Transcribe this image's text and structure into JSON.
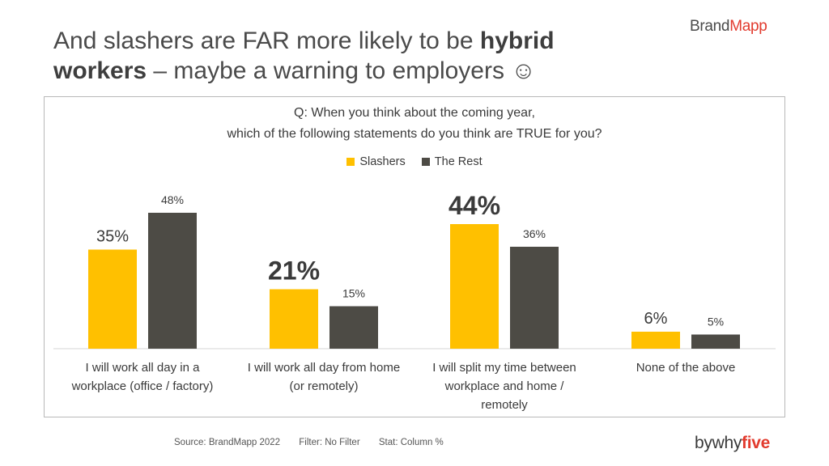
{
  "header": {
    "title_part1": "And slashers are FAR more likely to be ",
    "title_bold1": "hybrid",
    "title_bold2": "workers",
    "title_part2": " – maybe a warning to employers ☺",
    "brand_part1": "Brand",
    "brand_part2": "Mapp"
  },
  "colors": {
    "slashers": "#FFC000",
    "rest": "#4D4B45",
    "brand_red": "#E23B2E"
  },
  "chart_data": {
    "type": "bar",
    "title_line1": "Q: When you think about the coming year,",
    "title_line2": "which of the following statements do you think are TRUE for you?",
    "categories": [
      [
        "I will work all day in a",
        "workplace (office / factory)"
      ],
      [
        "I will work all day from home",
        "(or remotely)"
      ],
      [
        "I will split my time between",
        "workplace and home /",
        "remotely"
      ],
      [
        "None of the above"
      ]
    ],
    "series": [
      {
        "name": "Slashers",
        "values": [
          35,
          21,
          44,
          6
        ],
        "labels": [
          "35%",
          "21%",
          "44%",
          "6%"
        ]
      },
      {
        "name": "The Rest",
        "values": [
          48,
          15,
          36,
          5
        ],
        "labels": [
          "48%",
          "15%",
          "36%",
          "5%"
        ]
      }
    ],
    "emphasized_labels": [
      [
        false,
        false
      ],
      [
        true,
        false
      ],
      [
        true,
        false
      ],
      [
        false,
        false
      ]
    ],
    "ylim": [
      0,
      60
    ],
    "legend_position": "top-center"
  },
  "footer": {
    "source": "Source: BrandMapp 2022",
    "filter": "Filter: No Filter",
    "stat": "Stat: Column %",
    "logo_part1": "bywhy",
    "logo_part2": "five"
  }
}
